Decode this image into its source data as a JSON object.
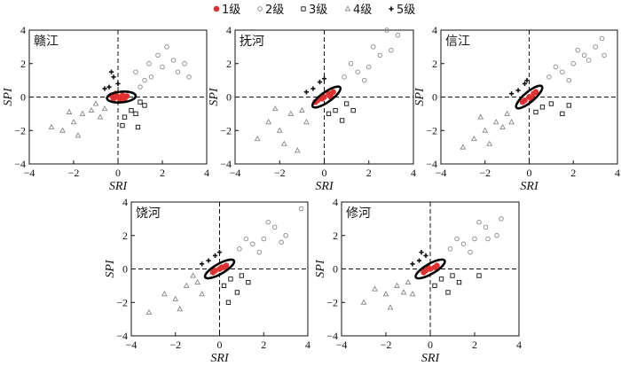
{
  "legend": [
    {
      "label": "1级",
      "marker": "filled-circle",
      "color": "#e03030"
    },
    {
      "label": "2级",
      "marker": "open-circle",
      "color": "#888888"
    },
    {
      "label": "3级",
      "marker": "open-square",
      "color": "#111111"
    },
    {
      "label": "4级",
      "marker": "open-triangle",
      "color": "#888888"
    },
    {
      "label": "5级",
      "marker": "plus",
      "color": "#111111"
    }
  ],
  "axes": {
    "xlabel": "SRI",
    "ylabel": "SPI",
    "xlim": [
      -4,
      4
    ],
    "ylim": [
      -4,
      4
    ],
    "xticks": [
      -4,
      -2,
      0,
      2,
      4
    ],
    "yticks": [
      -4,
      -2,
      0,
      2,
      4
    ]
  },
  "chart_data": [
    {
      "type": "scatter",
      "title": "赣江",
      "ellipse": {
        "cx": 0.15,
        "cy": 0.0,
        "rx": 0.65,
        "ry": 0.32,
        "angle_deg": 5
      },
      "series": [
        {
          "name": "1级",
          "points": [
            [
              0.0,
              0.0
            ],
            [
              0.2,
              0.1
            ],
            [
              -0.2,
              -0.1
            ],
            [
              0.4,
              0.05
            ],
            [
              -0.3,
              0.1
            ],
            [
              0.1,
              -0.2
            ],
            [
              0.3,
              -0.1
            ],
            [
              -0.1,
              0.2
            ]
          ]
        },
        {
          "name": "2级",
          "points": [
            [
              1.5,
              1.2
            ],
            [
              2.0,
              1.8
            ],
            [
              1.8,
              2.5
            ],
            [
              2.5,
              2.2
            ],
            [
              1.2,
              1.0
            ],
            [
              3.0,
              2.0
            ],
            [
              2.2,
              3.0
            ],
            [
              0.8,
              1.5
            ],
            [
              1.0,
              0.6
            ],
            [
              2.7,
              1.5
            ],
            [
              1.4,
              2.0
            ],
            [
              3.2,
              1.2
            ]
          ]
        },
        {
          "name": "3级",
          "points": [
            [
              0.6,
              -0.8
            ],
            [
              1.2,
              -0.5
            ],
            [
              0.3,
              -1.2
            ],
            [
              0.9,
              -1.8
            ],
            [
              1.0,
              -0.3
            ],
            [
              0.2,
              -1.7
            ],
            [
              0.8,
              -1.0
            ]
          ]
        },
        {
          "name": "4级",
          "points": [
            [
              -1.2,
              -0.8
            ],
            [
              -2.0,
              -1.5
            ],
            [
              -1.6,
              -1.0
            ],
            [
              -0.8,
              -1.2
            ],
            [
              -2.5,
              -2.0
            ],
            [
              -1.0,
              -0.4
            ],
            [
              -3.0,
              -1.8
            ],
            [
              -2.2,
              -0.9
            ],
            [
              -0.6,
              -0.7
            ],
            [
              -1.8,
              -2.3
            ]
          ]
        },
        {
          "name": "5级",
          "points": [
            [
              -0.4,
              0.6
            ],
            [
              -0.2,
              1.2
            ],
            [
              -0.6,
              0.5
            ],
            [
              0.0,
              0.8
            ],
            [
              -0.3,
              1.5
            ]
          ]
        }
      ]
    },
    {
      "type": "scatter",
      "title": "抚河",
      "ellipse": {
        "cx": 0.1,
        "cy": 0.0,
        "rx": 0.75,
        "ry": 0.3,
        "angle_deg": 35
      },
      "series": [
        {
          "name": "1级",
          "points": [
            [
              0.0,
              0.0
            ],
            [
              0.2,
              0.2
            ],
            [
              -0.3,
              -0.2
            ],
            [
              0.4,
              0.3
            ],
            [
              -0.1,
              -0.1
            ],
            [
              0.3,
              0.0
            ],
            [
              -0.4,
              -0.3
            ]
          ]
        },
        {
          "name": "2级",
          "points": [
            [
              1.5,
              1.5
            ],
            [
              2.0,
              1.8
            ],
            [
              2.5,
              2.5
            ],
            [
              1.2,
              2.0
            ],
            [
              3.0,
              2.8
            ],
            [
              1.8,
              1.0
            ],
            [
              2.2,
              3.0
            ],
            [
              0.9,
              1.2
            ],
            [
              2.8,
              4.0
            ],
            [
              3.3,
              3.7
            ]
          ]
        },
        {
          "name": "3级",
          "points": [
            [
              0.5,
              -0.8
            ],
            [
              1.0,
              -0.4
            ],
            [
              0.2,
              -1.0
            ],
            [
              0.8,
              -1.4
            ],
            [
              1.3,
              -0.8
            ]
          ]
        },
        {
          "name": "4级",
          "points": [
            [
              -1.5,
              -1.0
            ],
            [
              -2.0,
              -2.0
            ],
            [
              -1.0,
              -0.8
            ],
            [
              -2.5,
              -1.5
            ],
            [
              -3.0,
              -2.5
            ],
            [
              -0.8,
              -1.5
            ],
            [
              -1.8,
              -2.8
            ],
            [
              -1.2,
              -3.2
            ],
            [
              -2.2,
              -0.7
            ]
          ]
        },
        {
          "name": "5级",
          "points": [
            [
              -0.5,
              0.5
            ],
            [
              -0.2,
              0.9
            ],
            [
              -0.8,
              0.3
            ],
            [
              0.0,
              1.1
            ]
          ]
        }
      ]
    },
    {
      "type": "scatter",
      "title": "信江",
      "ellipse": {
        "cx": 0.0,
        "cy": 0.0,
        "rx": 0.75,
        "ry": 0.3,
        "angle_deg": 40
      },
      "series": [
        {
          "name": "1级",
          "points": [
            [
              0.0,
              0.0
            ],
            [
              0.2,
              0.2
            ],
            [
              -0.2,
              -0.2
            ],
            [
              0.3,
              0.3
            ],
            [
              -0.3,
              -0.3
            ],
            [
              0.1,
              -0.1
            ]
          ]
        },
        {
          "name": "2级",
          "points": [
            [
              1.5,
              1.5
            ],
            [
              2.0,
              2.0
            ],
            [
              2.5,
              2.5
            ],
            [
              1.2,
              1.8
            ],
            [
              3.0,
              3.0
            ],
            [
              1.8,
              1.0
            ],
            [
              2.2,
              2.8
            ],
            [
              0.9,
              1.2
            ],
            [
              3.4,
              2.5
            ],
            [
              3.3,
              3.5
            ],
            [
              2.7,
              2.2
            ]
          ]
        },
        {
          "name": "3级",
          "points": [
            [
              0.6,
              -0.6
            ],
            [
              1.0,
              -0.4
            ],
            [
              0.3,
              -0.9
            ],
            [
              1.8,
              -0.5
            ],
            [
              1.5,
              -1.0
            ]
          ]
        },
        {
          "name": "4级",
          "points": [
            [
              -1.5,
              -1.5
            ],
            [
              -2.0,
              -2.0
            ],
            [
              -1.0,
              -1.0
            ],
            [
              -2.5,
              -2.5
            ],
            [
              -3.0,
              -3.0
            ],
            [
              -0.8,
              -1.5
            ],
            [
              -1.8,
              -2.8
            ],
            [
              -1.2,
              -1.8
            ],
            [
              -2.2,
              -1.2
            ]
          ]
        },
        {
          "name": "5级",
          "points": [
            [
              -0.5,
              0.4
            ],
            [
              -0.2,
              0.8
            ],
            [
              -0.8,
              0.2
            ],
            [
              -0.1,
              1.0
            ]
          ]
        }
      ]
    },
    {
      "type": "scatter",
      "title": "饶河",
      "ellipse": {
        "cx": 0.0,
        "cy": 0.0,
        "rx": 0.75,
        "ry": 0.3,
        "angle_deg": 30
      },
      "series": [
        {
          "name": "1级",
          "points": [
            [
              0.0,
              0.0
            ],
            [
              0.2,
              0.1
            ],
            [
              -0.2,
              -0.1
            ],
            [
              0.3,
              0.2
            ],
            [
              -0.3,
              -0.2
            ],
            [
              0.1,
              0.1
            ]
          ]
        },
        {
          "name": "2级",
          "points": [
            [
              1.5,
              1.5
            ],
            [
              2.0,
              1.8
            ],
            [
              2.5,
              2.5
            ],
            [
              1.2,
              1.8
            ],
            [
              3.0,
              2.0
            ],
            [
              1.8,
              1.0
            ],
            [
              2.2,
              2.8
            ],
            [
              0.9,
              1.2
            ],
            [
              3.7,
              3.6
            ],
            [
              2.8,
              1.6
            ]
          ]
        },
        {
          "name": "3级",
          "points": [
            [
              0.5,
              -0.6
            ],
            [
              1.0,
              -0.4
            ],
            [
              0.2,
              -1.0
            ],
            [
              0.8,
              -1.4
            ],
            [
              1.3,
              -0.8
            ],
            [
              0.4,
              -2.0
            ]
          ]
        },
        {
          "name": "4级",
          "points": [
            [
              -1.5,
              -1.0
            ],
            [
              -2.0,
              -1.8
            ],
            [
              -1.0,
              -0.8
            ],
            [
              -2.5,
              -1.5
            ],
            [
              -3.2,
              -2.6
            ],
            [
              -0.8,
              -1.5
            ],
            [
              -1.8,
              -2.4
            ],
            [
              -1.2,
              -0.4
            ]
          ]
        },
        {
          "name": "5级",
          "points": [
            [
              -0.5,
              0.5
            ],
            [
              -0.2,
              0.8
            ],
            [
              -0.8,
              0.3
            ],
            [
              0.0,
              1.0
            ]
          ]
        }
      ]
    },
    {
      "type": "scatter",
      "title": "修河",
      "ellipse": {
        "cx": 0.0,
        "cy": 0.0,
        "rx": 0.75,
        "ry": 0.3,
        "angle_deg": 30
      },
      "series": [
        {
          "name": "1级",
          "points": [
            [
              0.0,
              0.0
            ],
            [
              0.2,
              0.1
            ],
            [
              -0.2,
              -0.1
            ],
            [
              0.3,
              0.2
            ],
            [
              -0.3,
              -0.2
            ],
            [
              -0.1,
              0.1
            ]
          ]
        },
        {
          "name": "2级",
          "points": [
            [
              1.5,
              1.5
            ],
            [
              2.0,
              1.8
            ],
            [
              2.5,
              2.5
            ],
            [
              1.2,
              1.8
            ],
            [
              3.0,
              2.0
            ],
            [
              1.8,
              1.0
            ],
            [
              2.2,
              2.8
            ],
            [
              0.9,
              1.2
            ],
            [
              3.2,
              3.0
            ],
            [
              2.6,
              1.8
            ]
          ]
        },
        {
          "name": "3级",
          "points": [
            [
              0.5,
              -0.6
            ],
            [
              1.0,
              -0.4
            ],
            [
              0.2,
              -1.0
            ],
            [
              0.8,
              -1.4
            ],
            [
              1.3,
              -0.8
            ],
            [
              2.2,
              -0.4
            ]
          ]
        },
        {
          "name": "4级",
          "points": [
            [
              -1.5,
              -1.0
            ],
            [
              -2.0,
              -1.5
            ],
            [
              -1.0,
              -0.8
            ],
            [
              -2.5,
              -1.2
            ],
            [
              -3.0,
              -2.0
            ],
            [
              -0.8,
              -1.5
            ],
            [
              -1.8,
              -2.3
            ],
            [
              -1.2,
              -1.4
            ]
          ]
        },
        {
          "name": "5级",
          "points": [
            [
              -0.5,
              0.5
            ],
            [
              -0.2,
              0.8
            ],
            [
              -0.8,
              0.3
            ],
            [
              -0.4,
              1.0
            ]
          ]
        }
      ]
    }
  ]
}
